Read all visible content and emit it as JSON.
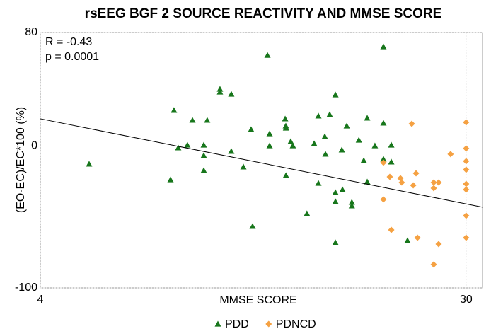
{
  "chart_data": {
    "type": "scatter",
    "title": "rsEEG BGF 2 SOURCE REACTIVITY AND MMSE SCORE",
    "x_label": "MMSE SCORE",
    "y_label": "(EO-EC)/EC*100 (%)",
    "annotations": [
      "R = -0.43",
      "p = 0.0001"
    ],
    "xlim": [
      4,
      31
    ],
    "ylim": [
      -100,
      80
    ],
    "xticks": [
      4,
      30
    ],
    "yticks": [
      -100,
      0,
      80
    ],
    "grid": true,
    "legend": "bottom",
    "series": [
      {
        "name": "PDD",
        "color": "#17761b",
        "marker": "triangle",
        "x": [
          6.98,
          11.95,
          12.16,
          12.42,
          12.98,
          13.29,
          13.98,
          13.98,
          13.98,
          14.19,
          14.97,
          14.97,
          15.66,
          15.66,
          16.4,
          16.87,
          16.96,
          17.87,
          18.0,
          18.0,
          18.95,
          18.99,
          19.0,
          19.0,
          19.29,
          19.42,
          20.28,
          20.72,
          20.98,
          20.98,
          21.37,
          21.41,
          21.67,
          22.02,
          22.02,
          22.02,
          22.02,
          22.41,
          22.45,
          22.71,
          23.02,
          23.02,
          23.45,
          23.75,
          23.96,
          23.96,
          24.43,
          24.95,
          24.95,
          24.95,
          25.43,
          25.43,
          26.42
        ],
        "values": [
          -12.7,
          -23.7,
          25.2,
          -1.2,
          0.7,
          18.2,
          0.7,
          -6.7,
          -17.2,
          18.2,
          40.1,
          38.1,
          36.6,
          -3.7,
          -14.7,
          11.7,
          -56.6,
          64.0,
          8.7,
          0.2,
          19.2,
          14.2,
          12.7,
          -20.7,
          3.2,
          0.2,
          -47.6,
          1.7,
          21.2,
          -26.2,
          6.7,
          -5.7,
          22.2,
          36.1,
          -32.7,
          -39.1,
          -68.0,
          -2.7,
          -30.7,
          14.2,
          -39.6,
          -42.1,
          4.2,
          -10.2,
          19.7,
          -25.2,
          0.2,
          70.0,
          16.2,
          -9.2,
          0.7,
          -11.2,
          -66.6
        ]
      },
      {
        "name": "PDNCD",
        "color": "#f5a142",
        "marker": "diamond",
        "x": [
          24.95,
          24.95,
          25.34,
          25.43,
          25.99,
          26.07,
          26.68,
          26.77,
          26.94,
          27.03,
          28.02,
          28.02,
          28.02,
          28.32,
          28.32,
          29.05,
          30,
          30,
          30,
          30,
          30,
          30,
          30,
          30
        ],
        "values": [
          -11.7,
          -37.6,
          -21.7,
          -59.1,
          -22.7,
          -25.7,
          15.7,
          -27.7,
          -19.2,
          -64.6,
          -25.7,
          -29.7,
          -83.5,
          -25.7,
          -69.1,
          -5.7,
          16.7,
          -1.7,
          -10.7,
          -16.7,
          -26.7,
          -30.7,
          -49.1,
          -64.6
        ]
      }
    ],
    "fit": {
      "color": "#000000",
      "x": [
        4,
        31
      ],
      "y": [
        19.2,
        -43.1
      ]
    }
  }
}
